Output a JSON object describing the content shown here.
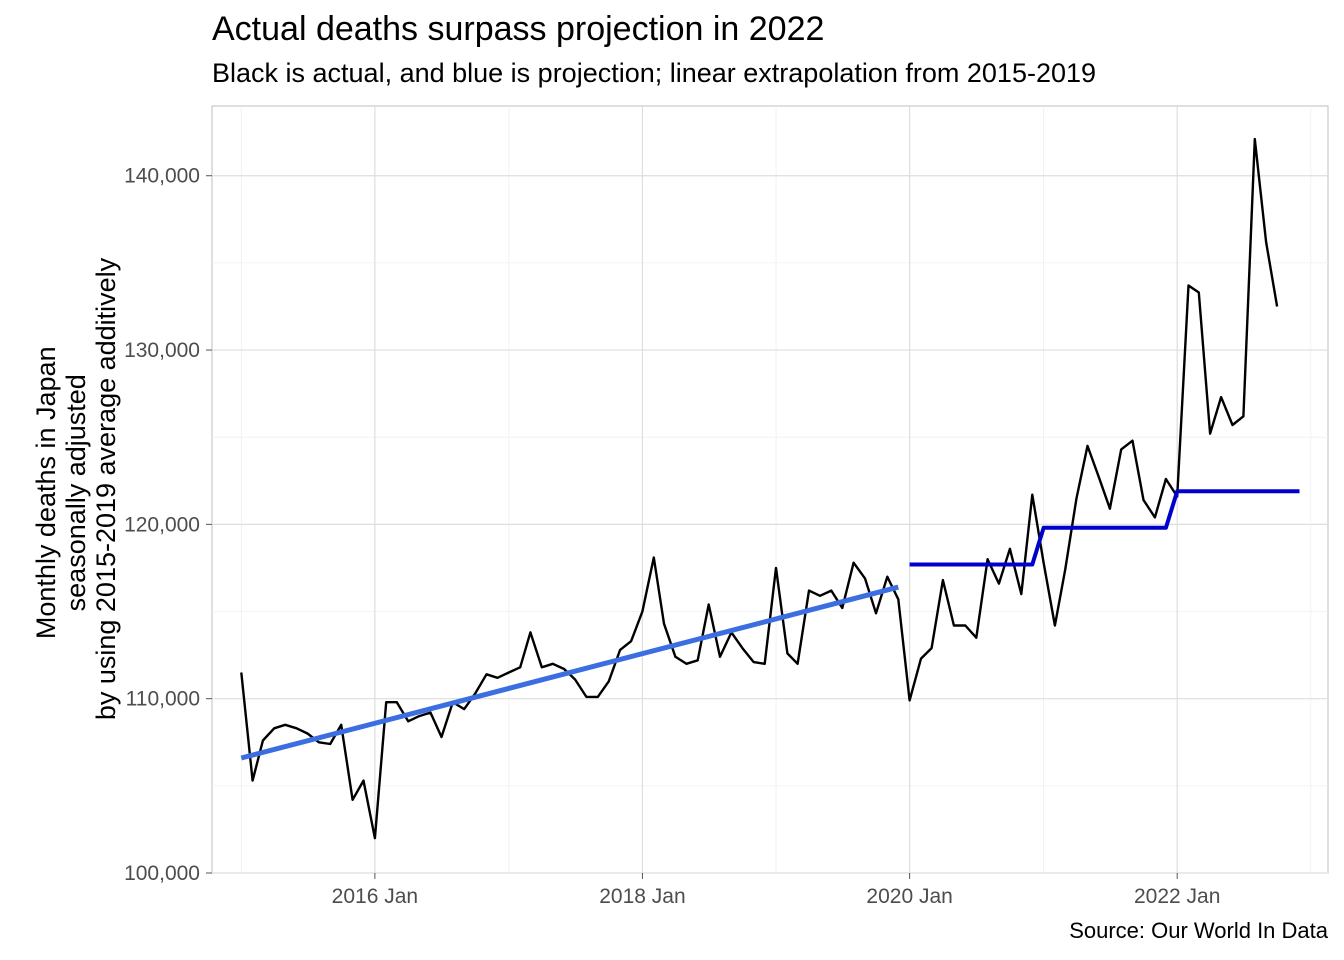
{
  "chart_data": {
    "type": "line",
    "title": "Actual deaths surpass projection in 2022",
    "subtitle": "Black is actual, and blue is projection; linear extrapolation from 2015-2019",
    "caption": "Source: Our World In Data",
    "ylabel_lines": [
      "Monthly deaths in Japan",
      "seasonally adjusted",
      "by using 2015-2019 average additively"
    ],
    "xlabel": "",
    "x_range": [
      "2014-10-13",
      "2023-02-17"
    ],
    "ylim": [
      100000,
      144000
    ],
    "x_ticks": [
      {
        "date": "2016-01-01",
        "label": "2016 Jan"
      },
      {
        "date": "2018-01-01",
        "label": "2018 Jan"
      },
      {
        "date": "2020-01-01",
        "label": "2020 Jan"
      },
      {
        "date": "2022-01-01",
        "label": "2022 Jan"
      }
    ],
    "y_ticks": [
      {
        "value": 100000,
        "label": "100,000"
      },
      {
        "value": 110000,
        "label": "110,000"
      },
      {
        "value": 120000,
        "label": "120,000"
      },
      {
        "value": 130000,
        "label": "130,000"
      },
      {
        "value": 140000,
        "label": "140,000"
      }
    ],
    "grid": true,
    "legend": "none",
    "series": [
      {
        "key": "actual",
        "color": "#000000",
        "points": [
          [
            "2015-01",
            111500
          ],
          [
            "2015-02",
            105300
          ],
          [
            "2015-03",
            107600
          ],
          [
            "2015-04",
            108300
          ],
          [
            "2015-05",
            108500
          ],
          [
            "2015-06",
            108300
          ],
          [
            "2015-07",
            108000
          ],
          [
            "2015-08",
            107500
          ],
          [
            "2015-09",
            107400
          ],
          [
            "2015-10",
            108500
          ],
          [
            "2015-11",
            104200
          ],
          [
            "2015-12",
            105300
          ],
          [
            "2016-01",
            102000
          ],
          [
            "2016-02",
            109800
          ],
          [
            "2016-03",
            109800
          ],
          [
            "2016-04",
            108700
          ],
          [
            "2016-05",
            109000
          ],
          [
            "2016-06",
            109200
          ],
          [
            "2016-07",
            107800
          ],
          [
            "2016-08",
            109800
          ],
          [
            "2016-09",
            109400
          ],
          [
            "2016-10",
            110300
          ],
          [
            "2016-11",
            111400
          ],
          [
            "2016-12",
            111200
          ],
          [
            "2017-01",
            111500
          ],
          [
            "2017-02",
            111800
          ],
          [
            "2017-03",
            113800
          ],
          [
            "2017-04",
            111800
          ],
          [
            "2017-05",
            112000
          ],
          [
            "2017-06",
            111700
          ],
          [
            "2017-07",
            111100
          ],
          [
            "2017-08",
            110100
          ],
          [
            "2017-09",
            110100
          ],
          [
            "2017-10",
            111000
          ],
          [
            "2017-11",
            112800
          ],
          [
            "2017-12",
            113300
          ],
          [
            "2018-01",
            115000
          ],
          [
            "2018-02",
            118100
          ],
          [
            "2018-03",
            114300
          ],
          [
            "2018-04",
            112400
          ],
          [
            "2018-05",
            112000
          ],
          [
            "2018-06",
            112200
          ],
          [
            "2018-07",
            115400
          ],
          [
            "2018-08",
            112400
          ],
          [
            "2018-09",
            113800
          ],
          [
            "2018-10",
            112900
          ],
          [
            "2018-11",
            112100
          ],
          [
            "2018-12",
            112000
          ],
          [
            "2019-01",
            117500
          ],
          [
            "2019-02",
            112600
          ],
          [
            "2019-03",
            112000
          ],
          [
            "2019-04",
            116200
          ],
          [
            "2019-05",
            115900
          ],
          [
            "2019-06",
            116200
          ],
          [
            "2019-07",
            115200
          ],
          [
            "2019-08",
            117800
          ],
          [
            "2019-09",
            116900
          ],
          [
            "2019-10",
            114900
          ],
          [
            "2019-11",
            117000
          ],
          [
            "2019-12",
            115700
          ],
          [
            "2020-01",
            109900
          ],
          [
            "2020-02",
            112300
          ],
          [
            "2020-03",
            112900
          ],
          [
            "2020-04",
            116800
          ],
          [
            "2020-05",
            114200
          ],
          [
            "2020-06",
            114200
          ],
          [
            "2020-07",
            113500
          ],
          [
            "2020-08",
            118000
          ],
          [
            "2020-09",
            116600
          ],
          [
            "2020-10",
            118600
          ],
          [
            "2020-11",
            116000
          ],
          [
            "2020-12",
            121700
          ],
          [
            "2021-01",
            117800
          ],
          [
            "2021-02",
            114200
          ],
          [
            "2021-03",
            117400
          ],
          [
            "2021-04",
            121500
          ],
          [
            "2021-05",
            124500
          ],
          [
            "2021-06",
            122700
          ],
          [
            "2021-07",
            120900
          ],
          [
            "2021-08",
            124300
          ],
          [
            "2021-09",
            124800
          ],
          [
            "2021-10",
            121400
          ],
          [
            "2021-11",
            120400
          ],
          [
            "2021-12",
            122600
          ],
          [
            "2022-01",
            121600
          ],
          [
            "2022-02",
            133700
          ],
          [
            "2022-03",
            133300
          ],
          [
            "2022-04",
            125200
          ],
          [
            "2022-05",
            127300
          ],
          [
            "2022-06",
            125700
          ],
          [
            "2022-07",
            126200
          ],
          [
            "2022-08",
            142100
          ],
          [
            "2022-09",
            136200
          ],
          [
            "2022-10",
            132500
          ]
        ]
      },
      {
        "key": "trend-2015-2019",
        "color": "#3b6ee0",
        "points": [
          [
            "2015-01",
            106600
          ],
          [
            "2019-12",
            116400
          ]
        ]
      },
      {
        "key": "projection",
        "color": "#0000cd",
        "points": [
          [
            "2020-01",
            117700
          ],
          [
            "2020-12",
            117700
          ],
          [
            "2021-01",
            119800
          ],
          [
            "2021-12",
            119800
          ],
          [
            "2022-01",
            121900
          ],
          [
            "2022-12",
            121900
          ]
        ]
      }
    ]
  }
}
